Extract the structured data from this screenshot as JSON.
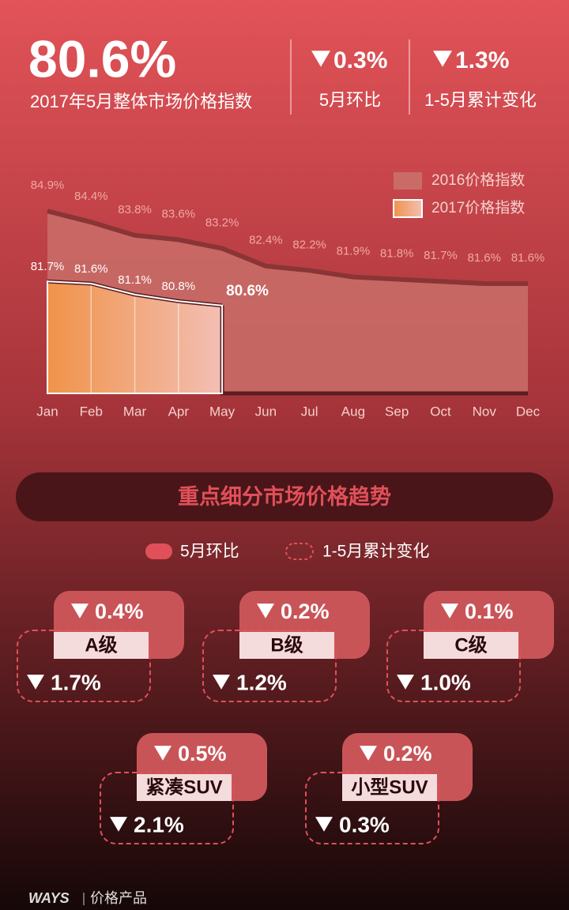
{
  "header": {
    "value": "80.6%",
    "label": "2017年5月整体市场价格指数",
    "stats": [
      {
        "value": "0.3%",
        "label": "5月环比"
      },
      {
        "value": "1.3%",
        "label": "1-5月累计变化"
      }
    ]
  },
  "chart_data": {
    "type": "area",
    "categories": [
      "Jan",
      "Feb",
      "Mar",
      "Apr",
      "May",
      "Jun",
      "Jul",
      "Aug",
      "Sep",
      "Oct",
      "Nov",
      "Dec"
    ],
    "ylim": [
      76.6,
      85.5
    ],
    "series": [
      {
        "name": "2016价格指数",
        "color": "#c96c67",
        "values": [
          84.9,
          84.4,
          83.8,
          83.6,
          83.2,
          82.4,
          82.2,
          81.9,
          81.8,
          81.7,
          81.6,
          81.6
        ],
        "value_labels": [
          "84.9%",
          "84.4%",
          "83.8%",
          "83.6%",
          "83.2%",
          "82.4%",
          "82.2%",
          "81.9%",
          "81.8%",
          "81.7%",
          "81.6%",
          "81.6%"
        ]
      },
      {
        "name": "2017价格指数",
        "color": "#f0934a",
        "values": [
          81.7,
          81.6,
          81.1,
          80.8,
          80.6,
          null,
          null,
          null,
          null,
          null,
          null,
          null
        ],
        "value_labels": [
          "81.7%",
          "81.6%",
          "81.1%",
          "80.8%",
          "80.6%",
          null,
          null,
          null,
          null,
          null,
          null,
          null
        ]
      }
    ]
  },
  "section": {
    "title": "重点细分市场价格趋势",
    "legend": [
      "5月环比",
      "1-5月累计变化"
    ],
    "segments": [
      {
        "name": "A级",
        "mom": "0.4%",
        "ytd": "1.7%"
      },
      {
        "name": "B级",
        "mom": "0.2%",
        "ytd": "1.2%"
      },
      {
        "name": "C级",
        "mom": "0.1%",
        "ytd": "1.0%"
      },
      {
        "name": "紧凑SUV",
        "mom": "0.5%",
        "ytd": "2.1%"
      },
      {
        "name": "小型SUV",
        "mom": "0.2%",
        "ytd": "0.3%"
      }
    ]
  },
  "footer": {
    "brand": "WAYS",
    "label": "价格产品"
  }
}
